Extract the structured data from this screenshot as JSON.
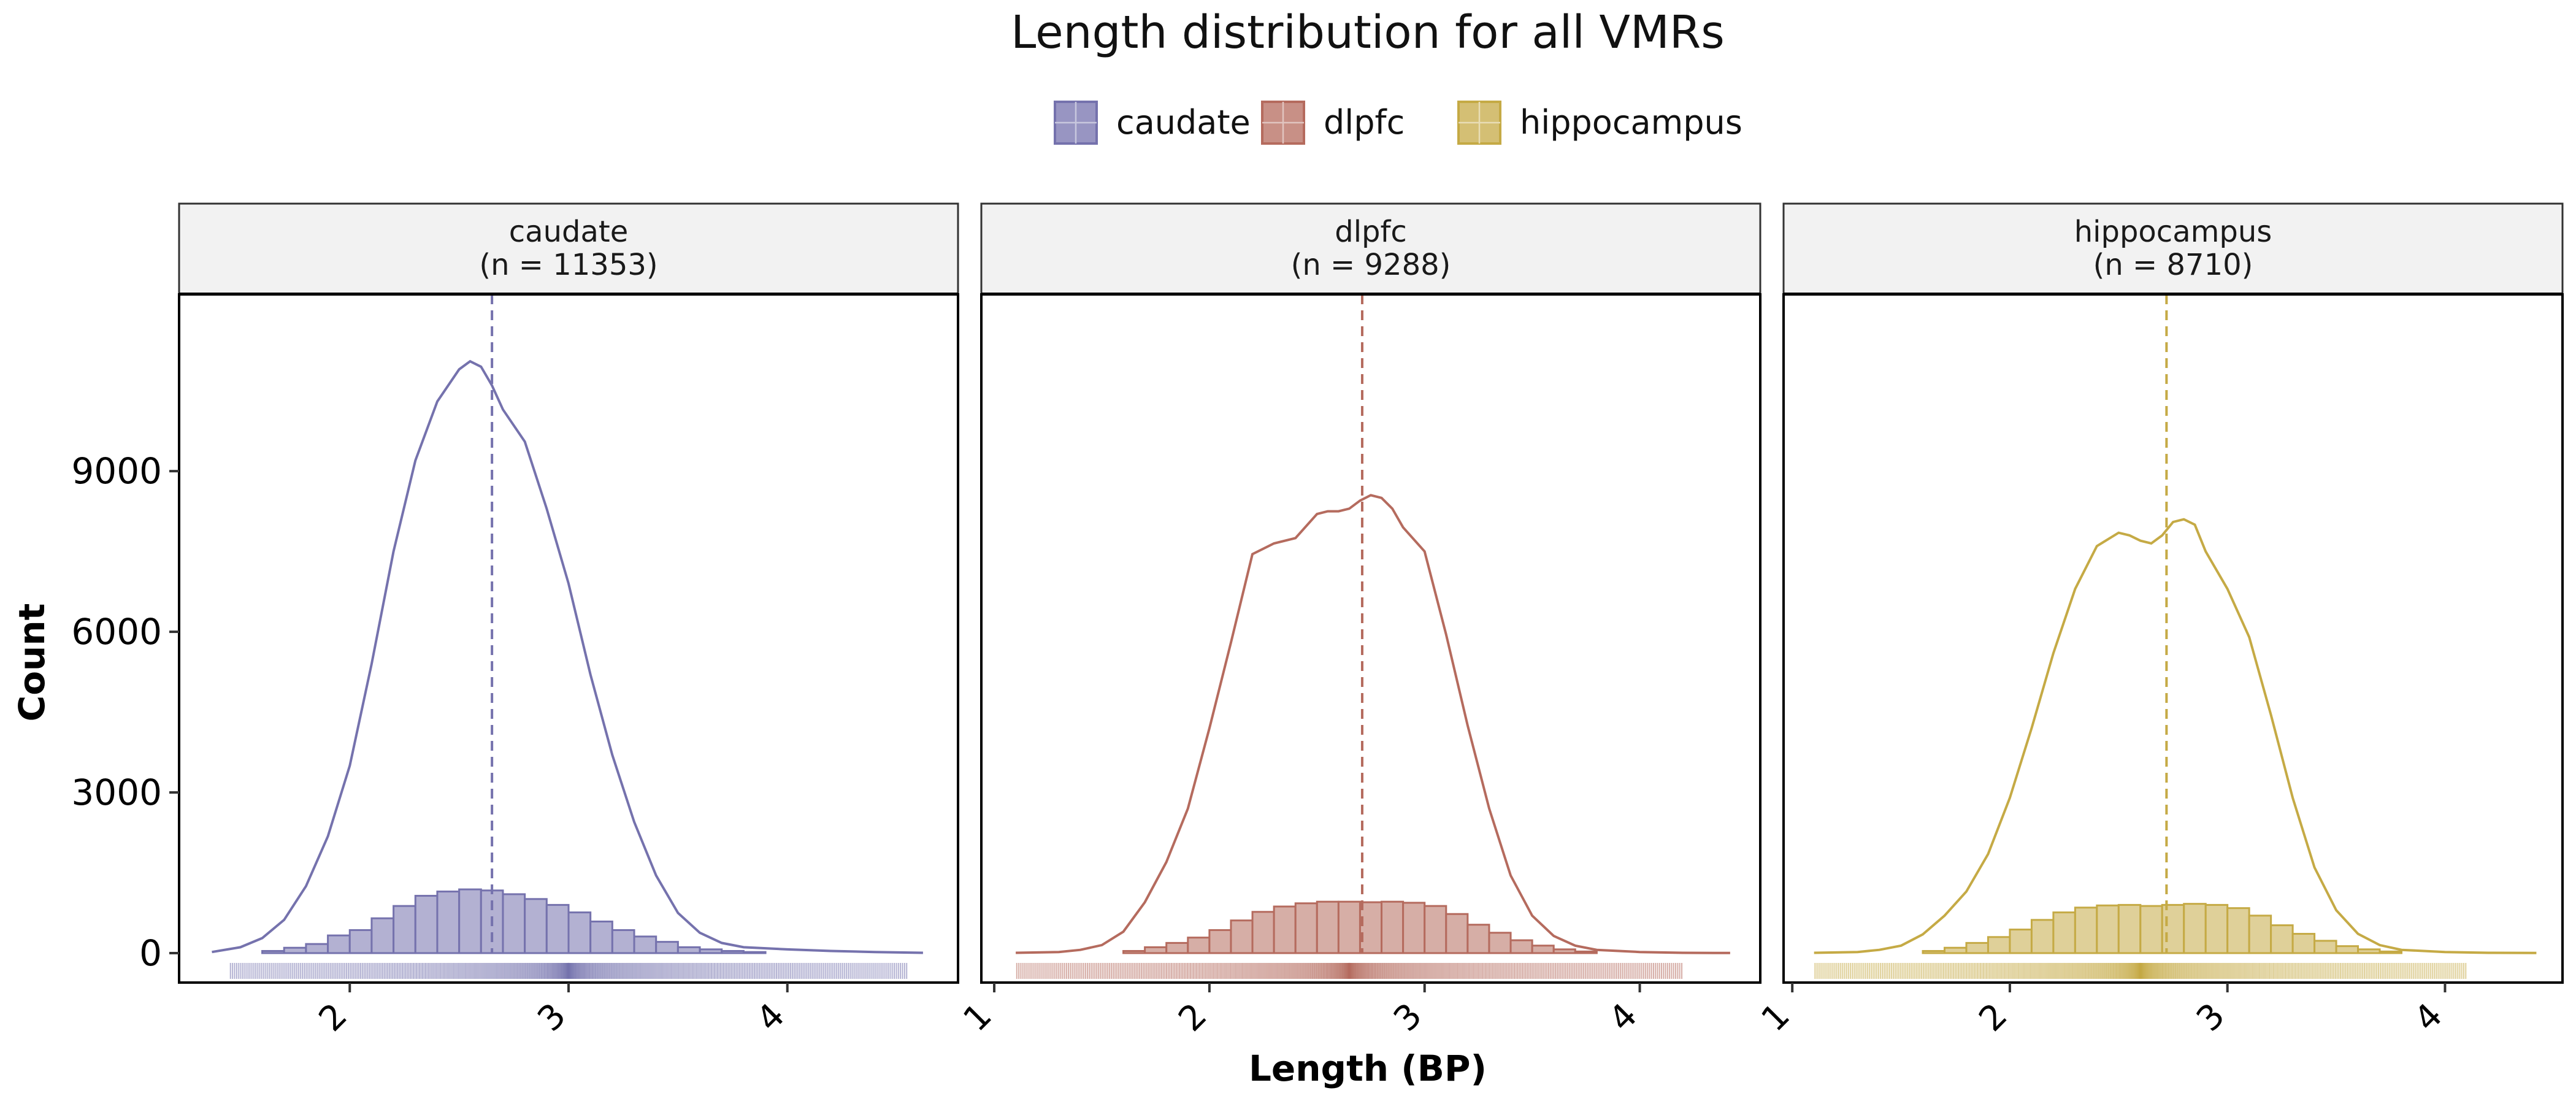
{
  "title": "Length distribution for all VMRs",
  "xlabel": "Length (BP)",
  "ylabel": "Count",
  "legend": {
    "placement": "top",
    "entries": [
      {
        "name": "caudate",
        "color": "#7572AD"
      },
      {
        "name": "dlpfc",
        "color": "#B56B5E"
      },
      {
        "name": "hippocampus",
        "color": "#C5AA45"
      }
    ]
  },
  "chart_data": {
    "type": "histogram with density overlay (faceted)",
    "y_axis": {
      "range": [
        -550,
        12300
      ],
      "ticks": [
        0,
        3000,
        6000,
        9000
      ]
    },
    "grid": false,
    "panels": [
      {
        "name": "caudate",
        "strip_title": "caudate",
        "strip_subtitle": "(n = 11353)",
        "color": "#7572AD",
        "x_range": [
          1.22,
          4.78
        ],
        "x_ticks": [
          2,
          3,
          4
        ],
        "x_tick_labels": [
          "2",
          "3",
          "4"
        ],
        "median_line": 2.65,
        "histogram": {
          "bin_width": 0.1,
          "bin_starts": [
            1.6,
            1.7,
            1.8,
            1.9,
            2.0,
            2.1,
            2.2,
            2.3,
            2.4,
            2.5,
            2.6,
            2.7,
            2.8,
            2.9,
            3.0,
            3.1,
            3.2,
            3.3,
            3.4,
            3.5,
            3.6,
            3.7,
            3.8
          ],
          "counts": [
            40,
            100,
            170,
            330,
            430,
            650,
            880,
            1070,
            1150,
            1190,
            1170,
            1100,
            1010,
            900,
            760,
            590,
            430,
            310,
            210,
            110,
            70,
            40,
            20
          ]
        },
        "density": {
          "x": [
            1.37,
            1.5,
            1.6,
            1.7,
            1.8,
            1.9,
            2.0,
            2.1,
            2.2,
            2.3,
            2.4,
            2.5,
            2.55,
            2.6,
            2.65,
            2.7,
            2.8,
            2.9,
            3.0,
            3.1,
            3.2,
            3.3,
            3.4,
            3.5,
            3.6,
            3.7,
            3.8,
            3.9,
            4.0,
            4.2,
            4.4,
            4.62
          ],
          "y": [
            20,
            110,
            280,
            620,
            1250,
            2180,
            3500,
            5400,
            7500,
            9200,
            10300,
            10900,
            11050,
            10950,
            10600,
            10150,
            9550,
            8300,
            6900,
            5200,
            3700,
            2450,
            1450,
            750,
            380,
            190,
            110,
            90,
            70,
            40,
            20,
            5
          ]
        },
        "rug_range": [
          1.45,
          4.55
        ]
      },
      {
        "name": "dlpfc",
        "strip_title": "dlpfc",
        "strip_subtitle": "(n = 9288)",
        "color": "#B56B5E",
        "x_range": [
          0.94,
          4.56
        ],
        "x_ticks": [
          1,
          2,
          3,
          4
        ],
        "x_tick_labels": [
          "1",
          "2",
          "3",
          "4"
        ],
        "median_line": 2.71,
        "histogram": {
          "bin_width": 0.1,
          "bin_starts": [
            1.6,
            1.7,
            1.8,
            1.9,
            2.0,
            2.1,
            2.2,
            2.3,
            2.4,
            2.5,
            2.6,
            2.7,
            2.8,
            2.9,
            3.0,
            3.1,
            3.2,
            3.3,
            3.4,
            3.5,
            3.6,
            3.7
          ],
          "counts": [
            40,
            110,
            190,
            290,
            430,
            610,
            770,
            870,
            930,
            960,
            960,
            950,
            960,
            940,
            880,
            730,
            530,
            380,
            240,
            140,
            70,
            30
          ]
        },
        "density": {
          "x": [
            1.1,
            1.3,
            1.4,
            1.5,
            1.6,
            1.7,
            1.8,
            1.9,
            2.0,
            2.1,
            2.2,
            2.3,
            2.4,
            2.5,
            2.55,
            2.6,
            2.65,
            2.7,
            2.75,
            2.8,
            2.85,
            2.9,
            3.0,
            3.1,
            3.2,
            3.3,
            3.4,
            3.5,
            3.6,
            3.7,
            3.8,
            4.0,
            4.2,
            4.42
          ],
          "y": [
            5,
            20,
            60,
            150,
            400,
            950,
            1700,
            2700,
            4200,
            5800,
            7450,
            7650,
            7750,
            8200,
            8250,
            8250,
            8300,
            8450,
            8550,
            8500,
            8300,
            7950,
            7500,
            5950,
            4250,
            2700,
            1450,
            700,
            320,
            140,
            60,
            20,
            5,
            2
          ]
        },
        "rug_range": [
          1.1,
          4.2
        ]
      },
      {
        "name": "hippocampus",
        "strip_title": "hippocampus",
        "strip_subtitle": "(n = 8710)",
        "color": "#C5AA45",
        "x_range": [
          0.96,
          4.54
        ],
        "x_ticks": [
          1,
          2,
          3,
          4
        ],
        "x_tick_labels": [
          "1",
          "2",
          "3",
          "4"
        ],
        "median_line": 2.72,
        "histogram": {
          "bin_width": 0.1,
          "bin_starts": [
            1.6,
            1.7,
            1.8,
            1.9,
            2.0,
            2.1,
            2.2,
            2.3,
            2.4,
            2.5,
            2.6,
            2.7,
            2.8,
            2.9,
            3.0,
            3.1,
            3.2,
            3.3,
            3.4,
            3.5,
            3.6,
            3.7
          ],
          "counts": [
            40,
            100,
            190,
            300,
            440,
            620,
            760,
            850,
            890,
            900,
            880,
            900,
            920,
            900,
            840,
            700,
            520,
            360,
            230,
            130,
            70,
            30
          ]
        },
        "density": {
          "x": [
            1.1,
            1.3,
            1.4,
            1.5,
            1.6,
            1.7,
            1.8,
            1.9,
            2.0,
            2.1,
            2.2,
            2.3,
            2.4,
            2.5,
            2.55,
            2.6,
            2.65,
            2.7,
            2.75,
            2.8,
            2.85,
            2.9,
            3.0,
            3.1,
            3.2,
            3.3,
            3.4,
            3.5,
            3.6,
            3.7,
            3.8,
            4.0,
            4.2,
            4.42
          ],
          "y": [
            5,
            20,
            60,
            140,
            350,
            700,
            1150,
            1850,
            2900,
            4200,
            5600,
            6800,
            7600,
            7850,
            7800,
            7700,
            7650,
            7800,
            8050,
            8100,
            8000,
            7500,
            6800,
            5900,
            4450,
            2900,
            1600,
            800,
            360,
            150,
            60,
            20,
            5,
            2
          ]
        },
        "rug_range": [
          1.1,
          4.1
        ]
      }
    ]
  }
}
